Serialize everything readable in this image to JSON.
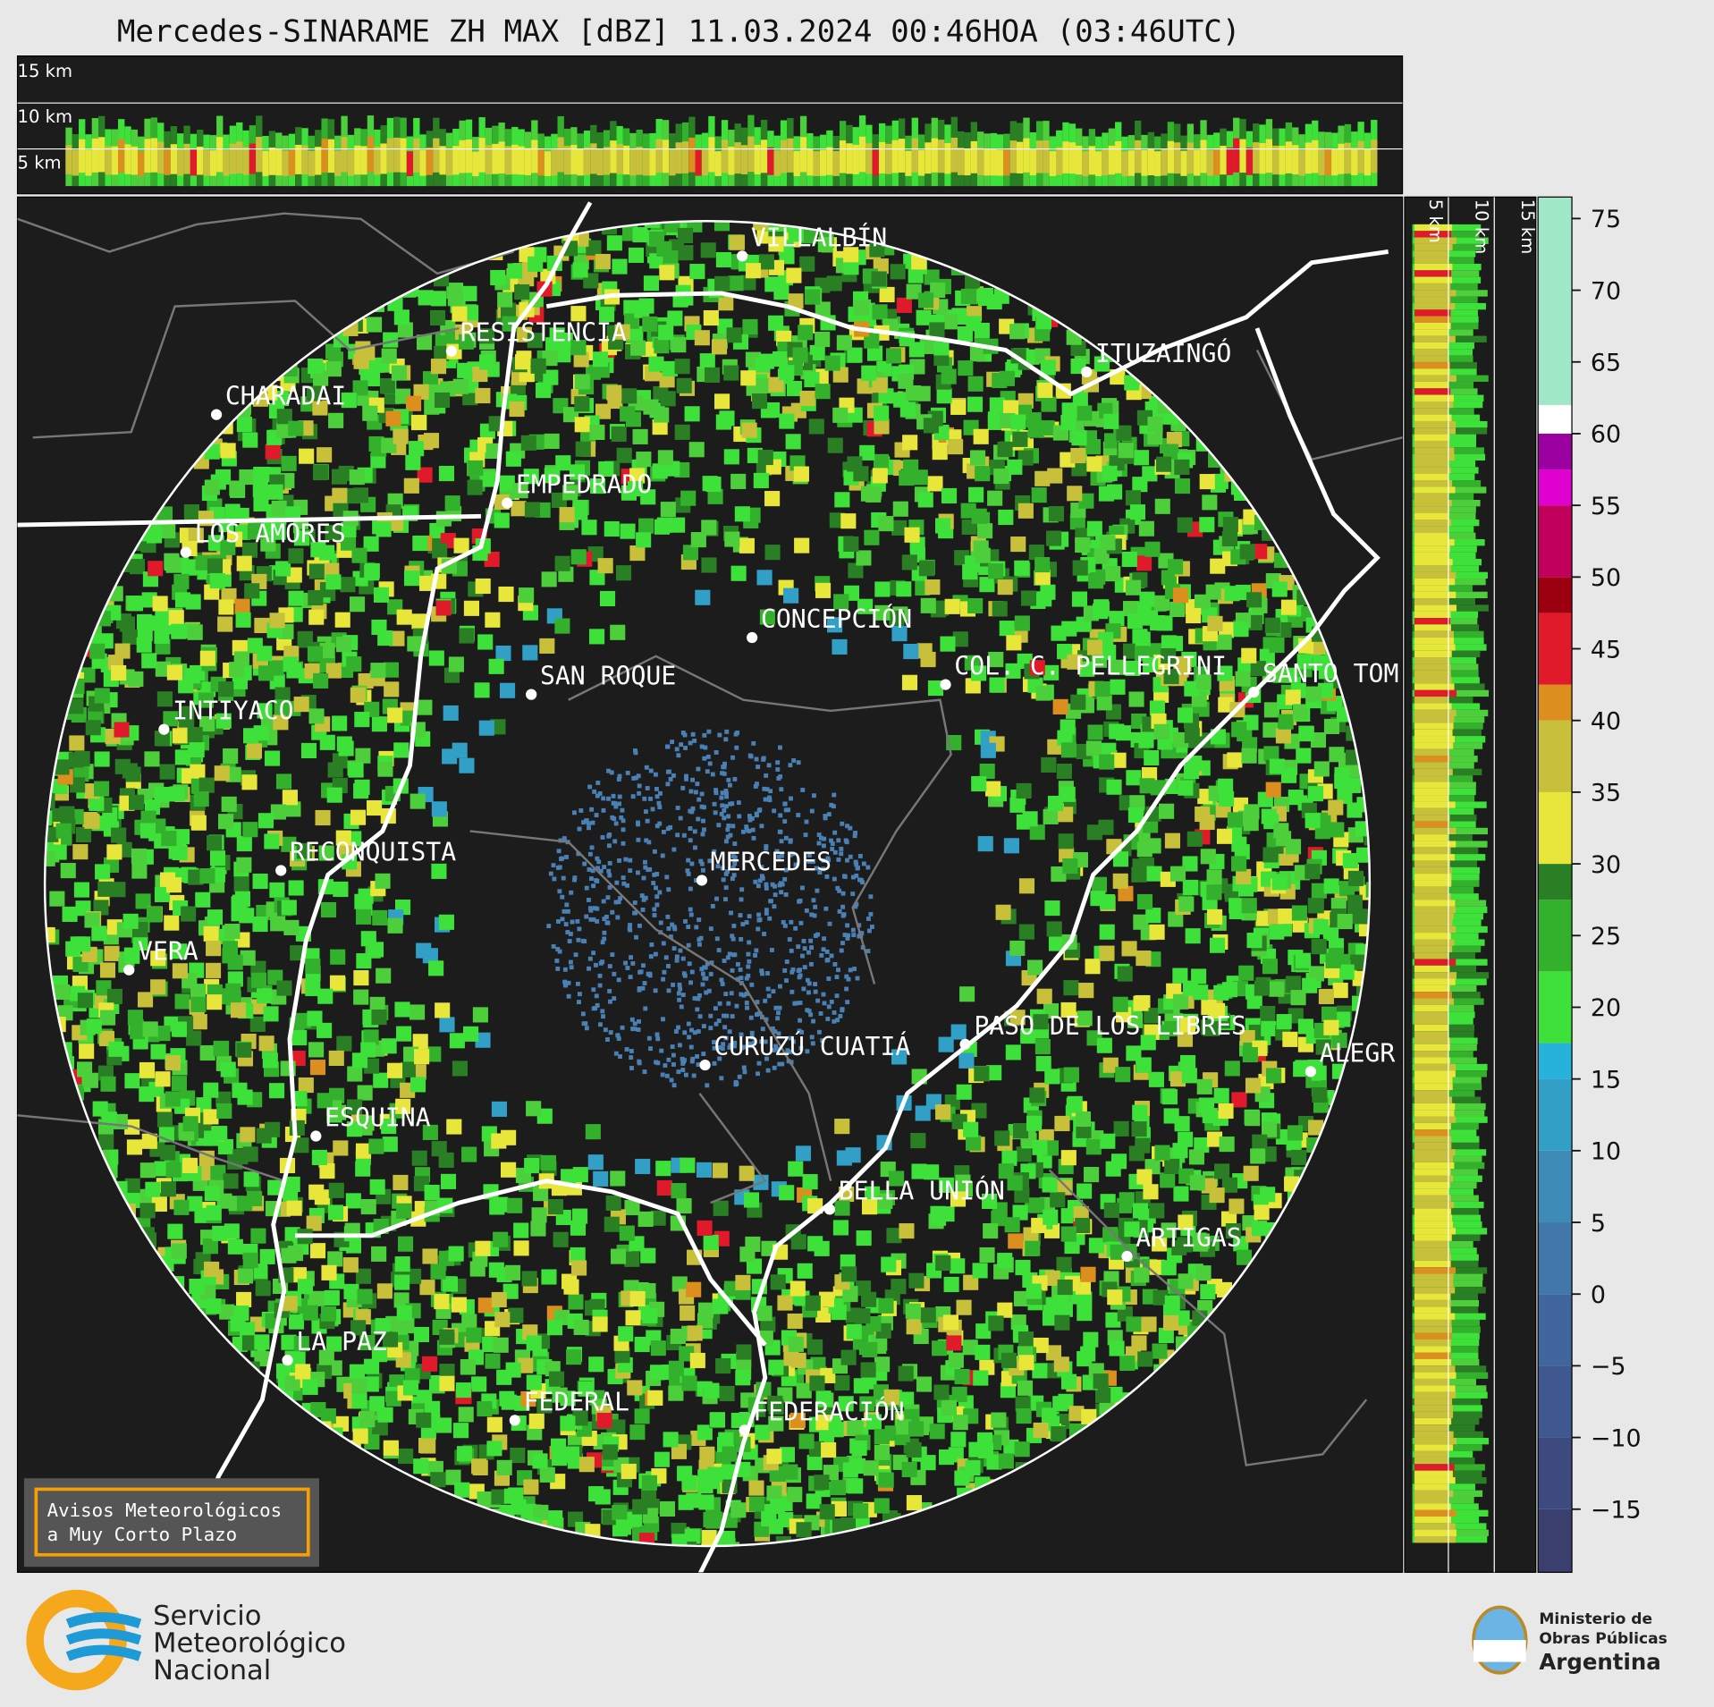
{
  "title": "Mercedes-SINARAME ZH MAX [dBZ] 11.03.2024 00:46HOA (03:46UTC)",
  "cities": [
    {
      "name": "VILLALBÍN"
    },
    {
      "name": "RESISTENCIA"
    },
    {
      "name": "CHARADAI"
    },
    {
      "name": "ITUZAINGÓ"
    },
    {
      "name": "EMPEDRADO"
    },
    {
      "name": "LOS AMORES"
    },
    {
      "name": "CONCEPCIÓN"
    },
    {
      "name": "SAN ROQUE"
    },
    {
      "name": "COL. C. PELLEGRINI"
    },
    {
      "name": "SANTO TOM"
    },
    {
      "name": "INTIYACO"
    },
    {
      "name": "RECONQUISTA"
    },
    {
      "name": "MERCEDES"
    },
    {
      "name": "VERA"
    },
    {
      "name": "CURUZÚ CUATIÁ"
    },
    {
      "name": "PASO DE LOS LIBRES"
    },
    {
      "name": "ALEGR"
    },
    {
      "name": "ESQUINA"
    },
    {
      "name": "BELLA UNIÓN"
    },
    {
      "name": "ARTIGAS"
    },
    {
      "name": "LA PAZ"
    },
    {
      "name": "FEDERAL"
    },
    {
      "name": "FEDERACIÓN"
    }
  ],
  "profile_top": {
    "labels": [
      "15 km",
      "10 km",
      "5 km"
    ]
  },
  "profile_side": {
    "labels": [
      "5 km",
      "10 km",
      "15 km"
    ]
  },
  "colorbar": {
    "clim": [
      -19.4,
      76.5
    ],
    "ticks": [
      75,
      70,
      65,
      60,
      55,
      50,
      45,
      40,
      35,
      30,
      25,
      20,
      15,
      10,
      5,
      0,
      {
        "value": -5,
        "label": "−5"
      },
      {
        "value": -10,
        "label": "−10"
      },
      {
        "value": -15,
        "label": "−15"
      }
    ],
    "bands": [
      {
        "from": -19.4,
        "to": -15,
        "color": "#3b3f6e"
      },
      {
        "from": -15,
        "to": -10,
        "color": "#3d4a80"
      },
      {
        "from": -10,
        "to": -5,
        "color": "#3f5890"
      },
      {
        "from": -5,
        "to": 0,
        "color": "#41669e"
      },
      {
        "from": 0,
        "to": 5,
        "color": "#4277aa"
      },
      {
        "from": 5,
        "to": 10,
        "color": "#3f8bb8"
      },
      {
        "from": 10,
        "to": 15,
        "color": "#329fc7"
      },
      {
        "from": 15,
        "to": 17.5,
        "color": "#27b2db"
      },
      {
        "from": 17.5,
        "to": 22.5,
        "color": "#3ee03a"
      },
      {
        "from": 22.5,
        "to": 27.5,
        "color": "#33b02c"
      },
      {
        "from": 27.5,
        "to": 30,
        "color": "#2a7f24"
      },
      {
        "from": 30,
        "to": 35,
        "color": "#e8e63a"
      },
      {
        "from": 35,
        "to": 40,
        "color": "#c8c03a"
      },
      {
        "from": 40,
        "to": 42.5,
        "color": "#dc8f1e"
      },
      {
        "from": 42.5,
        "to": 47.5,
        "color": "#e01a2a"
      },
      {
        "from": 47.5,
        "to": 50,
        "color": "#9c0010"
      },
      {
        "from": 50,
        "to": 55,
        "color": "#c0005a"
      },
      {
        "from": 55,
        "to": 57.5,
        "color": "#e000d0"
      },
      {
        "from": 57.5,
        "to": 60,
        "color": "#9b00a0"
      },
      {
        "from": 60,
        "to": 62,
        "color": "#ffffff"
      },
      {
        "from": 62,
        "to": 76.5,
        "color": "#a0e8c8"
      }
    ]
  },
  "notice": {
    "lines": [
      "Avisos Meteorológicos",
      "a Muy Corto Plazo"
    ]
  },
  "logos": {
    "smn": [
      "Servicio",
      "Meteorológico",
      "Nacional"
    ],
    "ministry": [
      "Ministerio de",
      "Obras Públicas",
      "Argentina"
    ]
  }
}
